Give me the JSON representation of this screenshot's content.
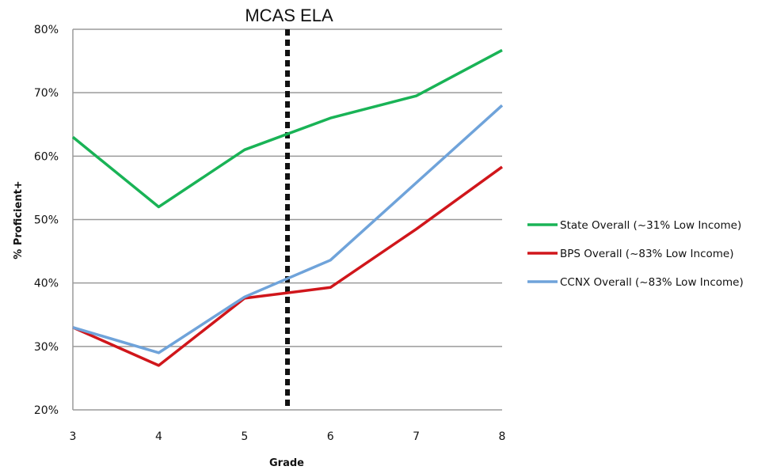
{
  "chart_data": {
    "type": "line",
    "title": "MCAS ELA",
    "xlabel": "Grade",
    "ylabel": "% Proficient+",
    "x": [
      3,
      4,
      5,
      6,
      7,
      8
    ],
    "x_tick_labels": [
      "3",
      "4",
      "5",
      "6",
      "7",
      "8"
    ],
    "y_tick_labels": [
      "20%",
      "30%",
      "40%",
      "50%",
      "60%",
      "70%",
      "80%"
    ],
    "ylim": [
      20,
      80
    ],
    "y_unit": "%",
    "grid": "horizontal",
    "legend_position": "right",
    "marker_line": {
      "x": 5.5,
      "style": "dashed",
      "color": "#111111"
    },
    "series": [
      {
        "name": "State Overall (~31% Low Income)",
        "color": "#19b356",
        "values": [
          63,
          52,
          61,
          66,
          69.5,
          76.7
        ]
      },
      {
        "name": "BPS Overall (~83% Low Income)",
        "color": "#d0161b",
        "values": [
          33,
          27,
          37.6,
          39.3,
          48.5,
          58.3
        ]
      },
      {
        "name": "CCNX Overall (~83% Low Income)",
        "color": "#6fa3da",
        "values": [
          33,
          29,
          37.8,
          43.6,
          55.8,
          68
        ]
      }
    ]
  }
}
